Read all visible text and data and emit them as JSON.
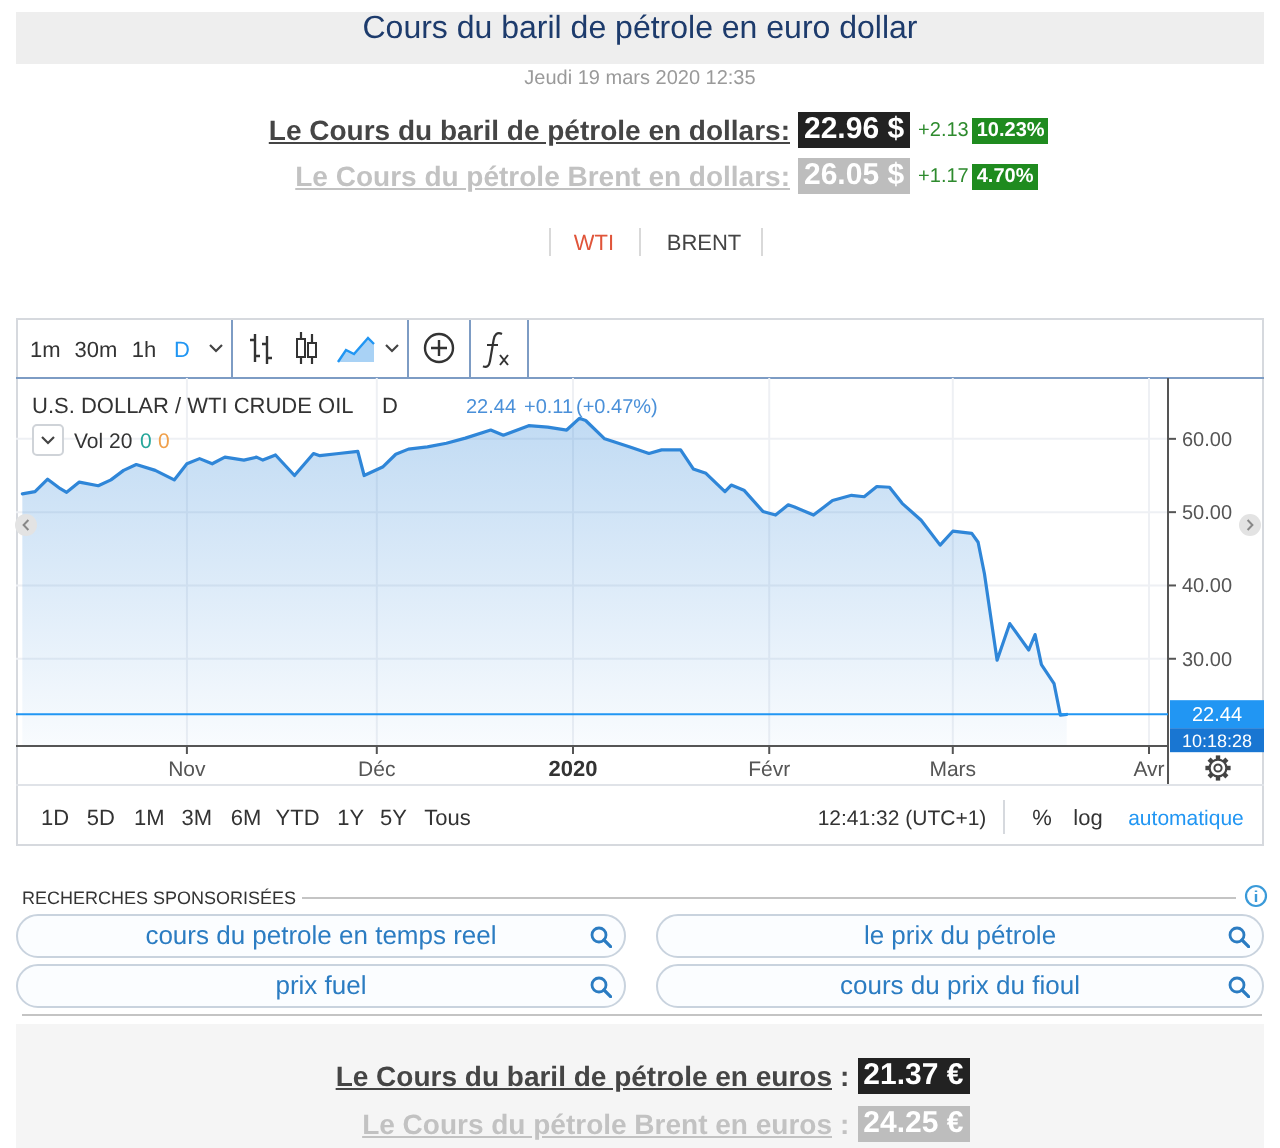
{
  "chart_data": {
    "type": "area",
    "title": "Cours du baril de pétrole en euro dollar",
    "subtitle": "Jeudi 19 mars 2020 12:35",
    "x": [
      "2019-10-06",
      "2019-10-08",
      "2019-10-10",
      "2019-10-12",
      "2019-10-13",
      "2019-10-15",
      "2019-10-18",
      "2019-10-20",
      "2019-10-22",
      "2019-10-24",
      "2019-10-27",
      "2019-10-30",
      "2019-11-01",
      "2019-11-03",
      "2019-11-05",
      "2019-11-07",
      "2019-11-10",
      "2019-11-12",
      "2019-11-13",
      "2019-11-15",
      "2019-11-18",
      "2019-11-21",
      "2019-11-22",
      "2019-11-25",
      "2019-11-28",
      "2019-11-29",
      "2019-12-02",
      "2019-12-04",
      "2019-12-06",
      "2019-12-09",
      "2019-12-12",
      "2019-12-15",
      "2019-12-19",
      "2019-12-21",
      "2019-12-25",
      "2019-12-28",
      "2019-12-31",
      "2020-01-02",
      "2020-01-03",
      "2020-01-06",
      "2020-01-10",
      "2020-01-13",
      "2020-01-15",
      "2020-01-18",
      "2020-01-20",
      "2020-01-22",
      "2020-01-25",
      "2020-01-26",
      "2020-01-28",
      "2020-01-31",
      "2020-02-02",
      "2020-02-04",
      "2020-02-05",
      "2020-02-08",
      "2020-02-11",
      "2020-02-14",
      "2020-02-16",
      "2020-02-18",
      "2020-02-20",
      "2020-02-22",
      "2020-02-25",
      "2020-02-28",
      "2020-03-01",
      "2020-03-04",
      "2020-03-05",
      "2020-03-06",
      "2020-03-08",
      "2020-03-10",
      "2020-03-13",
      "2020-03-14",
      "2020-03-15",
      "2020-03-17",
      "2020-03-18",
      "2020-03-19"
    ],
    "values": [
      52.5,
      52.8,
      54.5,
      53.2,
      52.7,
      54.1,
      53.6,
      54.4,
      55.7,
      56.5,
      55.7,
      54.4,
      56.6,
      57.3,
      56.6,
      57.5,
      57.1,
      57.5,
      57.1,
      57.8,
      55.0,
      58.0,
      57.7,
      58.0,
      58.3,
      55.0,
      56.2,
      57.9,
      58.6,
      58.9,
      59.4,
      60.1,
      61.2,
      60.5,
      61.8,
      61.6,
      61.2,
      62.8,
      62.5,
      60.0,
      58.9,
      58.0,
      58.5,
      58.5,
      55.9,
      55.3,
      52.8,
      53.7,
      53.0,
      50.1,
      49.6,
      51.0,
      50.7,
      49.6,
      51.6,
      52.3,
      52.1,
      53.5,
      53.4,
      51.2,
      48.9,
      45.5,
      47.4,
      47.1,
      45.9,
      41.6,
      29.8,
      34.8,
      31.2,
      33.3,
      29.2,
      26.6,
      22.3,
      22.4
    ],
    "color": "#2f86d8",
    "xlim": [
      "2019-10-05",
      "2020-04-04"
    ],
    "xticks": [
      {
        "value": "2019-11-01",
        "label": "Nov"
      },
      {
        "value": "2019-12-01",
        "label": "Déc"
      },
      {
        "value": "2020-01-01",
        "label": "2020"
      },
      {
        "value": "2020-02-01",
        "label": "Févr"
      },
      {
        "value": "2020-03-01",
        "label": "Mars"
      },
      {
        "value": "2020-04-01",
        "label": "Avr"
      }
    ],
    "ylim": [
      18.1,
      68.3
    ],
    "yticks": [
      {
        "value": 30,
        "label": "30.00"
      },
      {
        "value": 40,
        "label": "40.00"
      },
      {
        "value": 50,
        "label": "50.00"
      },
      {
        "value": 60,
        "label": "60.00"
      }
    ],
    "grid": true,
    "ref_lines": [
      {
        "axis": "y",
        "value": 22.44,
        "label": "22.44",
        "color": "#2196f3"
      }
    ],
    "annotations": [
      "Le Cours du baril de pétrole en dollars:",
      "22.96 $",
      "+2.13",
      "10.23%",
      "Le Cours du pétrole Brent en dollars:",
      "26.05 $",
      "+1.17",
      "4.70%",
      "WTI",
      "BRENT",
      "1m",
      "30m",
      "1h",
      "D",
      "U.S. DOLLAR / WTI CRUDE OIL",
      "D",
      "22.44",
      "+0.11",
      "(+0.47%)",
      "Vol 20",
      "0",
      "0",
      "10:18:28",
      "1D",
      "5D",
      "1M",
      "3M",
      "6M",
      "YTD",
      "1Y",
      "5Y",
      "Tous",
      "12:41:32 (UTC+1)",
      "%",
      "log",
      "automatique",
      "RECHERCHES SPONSORISÉES",
      "cours du petrole en temps reel",
      "le prix du pétrole",
      "prix fuel",
      "cours du prix du fioul",
      "Le Cours du baril de pétrole en euros",
      ":",
      "21.37 €",
      "Le Cours du pétrole Brent en euros",
      ":",
      "24.25 €"
    ]
  }
}
